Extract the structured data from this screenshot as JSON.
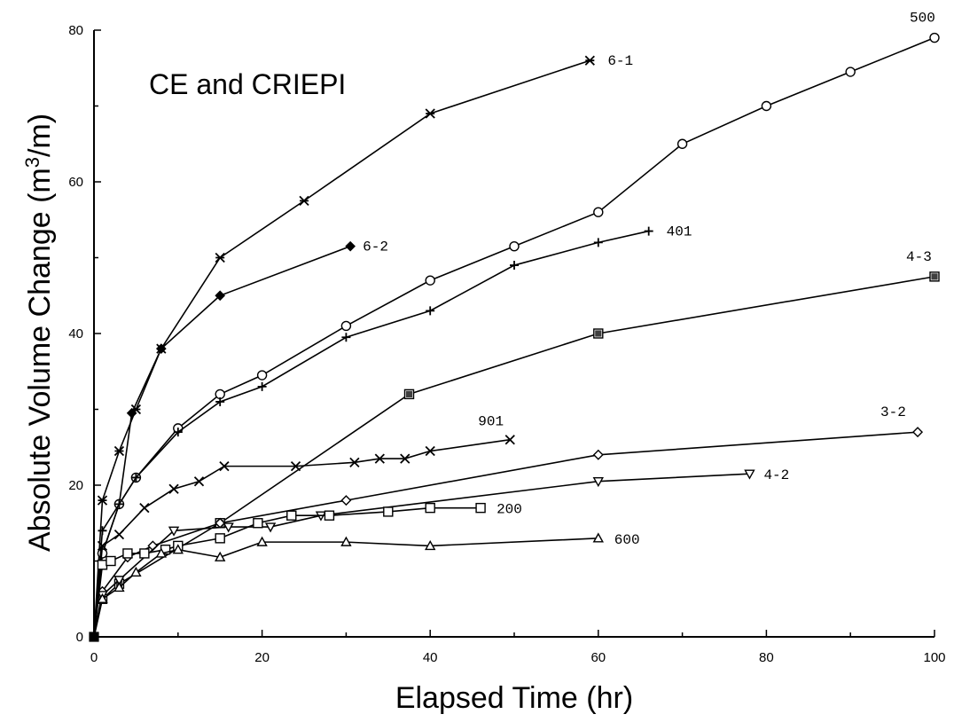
{
  "chart_data": {
    "type": "line",
    "title": "CE and CRIEPI",
    "xlabel": "Elapsed Time  (hr)",
    "ylabel": "Absolute Volume Change  (m",
    "ylabel_sup": "3",
    "ylabel_end": "/m)",
    "xlim": [
      0,
      100
    ],
    "ylim": [
      0,
      80
    ],
    "xticks": [
      0,
      20,
      40,
      60,
      80,
      100
    ],
    "yticks": [
      0,
      20,
      40,
      60,
      80
    ],
    "grid": false,
    "series": [
      {
        "name": "6-1",
        "marker": "asterisk",
        "x": [
          0,
          1,
          3,
          5,
          8,
          15,
          25,
          40,
          59
        ],
        "y": [
          0,
          18,
          24.5,
          30,
          38,
          50,
          57.5,
          69,
          76
        ]
      },
      {
        "name": "6-2",
        "marker": "diamond-filled",
        "x": [
          0,
          1,
          3,
          4.5,
          8,
          15,
          30.5
        ],
        "y": [
          0,
          11,
          17.5,
          29.5,
          38,
          45,
          51.5
        ]
      },
      {
        "name": "500",
        "marker": "circle",
        "x": [
          0,
          1,
          3,
          5,
          10,
          15,
          20,
          30,
          40,
          50,
          60,
          70,
          80,
          90,
          100
        ],
        "y": [
          0,
          11,
          17.5,
          21,
          27.5,
          32,
          34.5,
          41,
          47,
          51.5,
          56,
          65,
          70,
          74.5,
          79
        ]
      },
      {
        "name": "401",
        "marker": "plus",
        "x": [
          0,
          1,
          3,
          5,
          10,
          15,
          20,
          30,
          40,
          50,
          60,
          66
        ],
        "y": [
          0,
          14,
          17.5,
          21,
          27,
          31,
          33,
          39.5,
          43,
          49,
          52,
          53.5
        ]
      },
      {
        "name": "4-3",
        "marker": "square-filled",
        "x": [
          0,
          1,
          3,
          15,
          37.5,
          60,
          100
        ],
        "y": [
          0,
          5,
          7,
          15,
          32,
          40,
          47.5
        ]
      },
      {
        "name": "901",
        "marker": "x",
        "x": [
          0,
          1,
          3,
          6,
          9.5,
          12.5,
          15.5,
          24,
          31,
          34,
          37,
          40,
          49.5
        ],
        "y": [
          0,
          12,
          13.5,
          17,
          19.5,
          20.5,
          22.5,
          22.5,
          23,
          23.5,
          23.5,
          24.5,
          26
        ]
      },
      {
        "name": "3-2",
        "marker": "diamond",
        "x": [
          0,
          1,
          4,
          7,
          15,
          30,
          60,
          98
        ],
        "y": [
          0,
          6,
          10.5,
          12,
          15,
          18,
          24,
          27
        ]
      },
      {
        "name": "4-2",
        "marker": "triangle-down",
        "x": [
          0,
          1,
          3,
          9.5,
          16,
          21,
          27,
          60,
          78
        ],
        "y": [
          0,
          5.5,
          7.5,
          14,
          14.5,
          14.5,
          16,
          20.5,
          21.5
        ]
      },
      {
        "name": "200",
        "marker": "square",
        "x": [
          0,
          1,
          2,
          4,
          6,
          8.5,
          10,
          15,
          19.5,
          23.5,
          28,
          35,
          40,
          46
        ],
        "y": [
          0,
          9.5,
          10,
          11,
          11,
          11.5,
          12,
          13,
          15,
          16,
          16,
          16.5,
          17,
          17
        ]
      },
      {
        "name": "600",
        "marker": "triangle-up",
        "x": [
          0,
          1,
          3,
          5,
          8,
          10,
          15,
          20,
          30,
          40,
          60
        ],
        "y": [
          0,
          5,
          6.5,
          8.5,
          11,
          11.5,
          10.5,
          12.5,
          12.5,
          12,
          13
        ]
      }
    ]
  }
}
